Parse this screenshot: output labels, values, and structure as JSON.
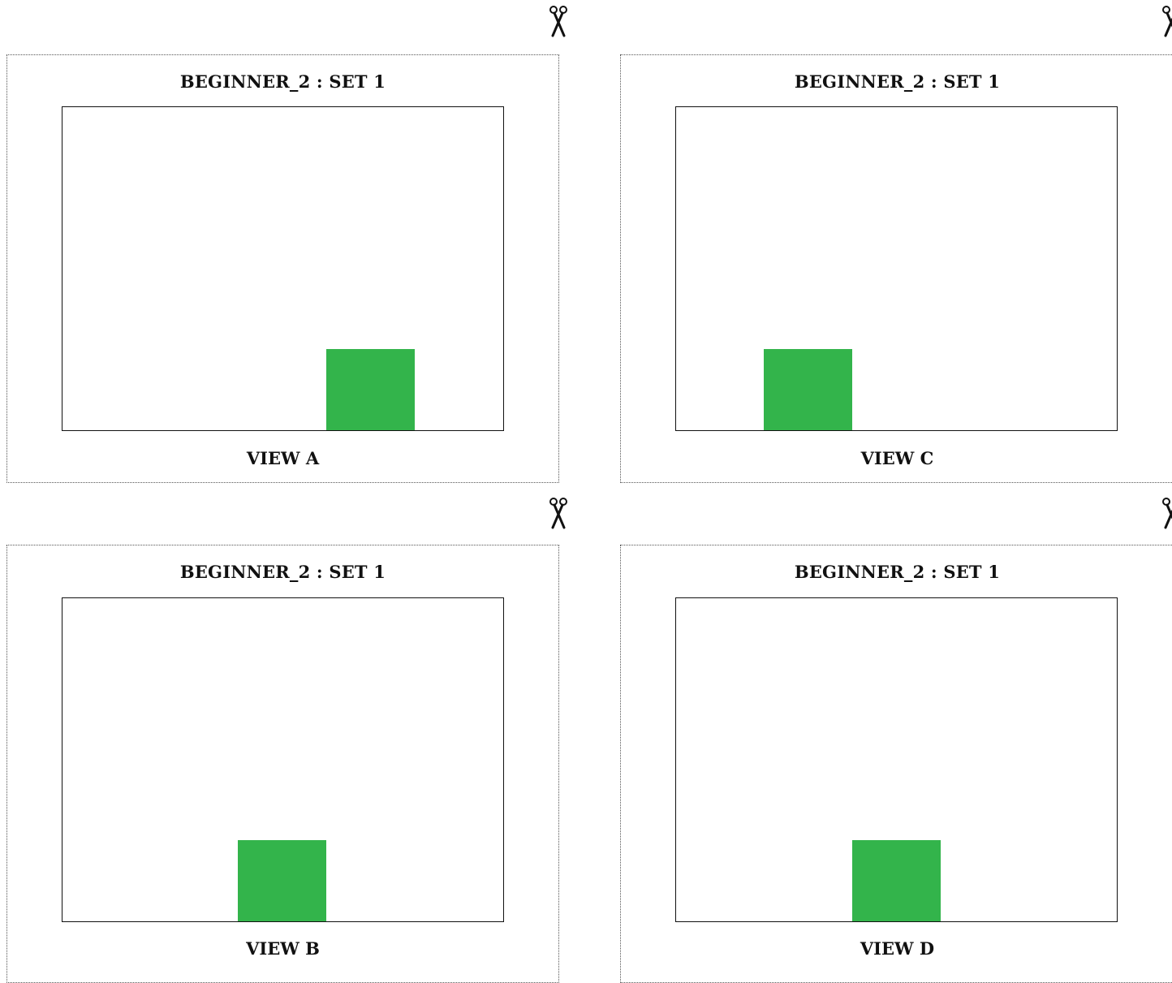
{
  "block_color": "#33b44b",
  "cut_icon": "scissors-icon",
  "cards": [
    {
      "title": "BEGINNER_2 : SET 1",
      "view_label": "VIEW A",
      "block_position": "right of center"
    },
    {
      "title": "BEGINNER_2 : SET 1",
      "view_label": "VIEW C",
      "block_position": "left"
    },
    {
      "title": "BEGINNER_2 : SET 1",
      "view_label": "VIEW B",
      "block_position": "center"
    },
    {
      "title": "BEGINNER_2 : SET 1",
      "view_label": "VIEW D",
      "block_position": "center"
    }
  ]
}
